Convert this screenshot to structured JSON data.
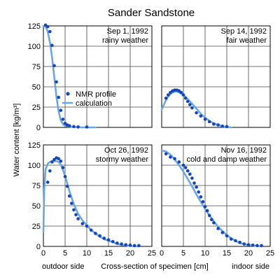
{
  "figure": {
    "title": "Sander Sandstone",
    "ylabel": "Water content [kg/m³]",
    "xlabel": "Cross-section of specimen [cm]",
    "left_note": "outdoor side",
    "right_note": "indoor side",
    "legend": {
      "points_label": "NMR profile",
      "line_label": "calculation"
    }
  },
  "chart_data": [
    {
      "type": "scatter",
      "date": "Sep 1, 1992",
      "weather": "rainy weather",
      "xlim": [
        0,
        25
      ],
      "ylim": [
        0,
        125
      ],
      "xticks": [],
      "yticks": [
        0,
        25,
        50,
        75,
        100,
        125
      ],
      "series": [
        {
          "name": "NMR profile",
          "kind": "points",
          "x": [
            0.5,
            1.0,
            1.5,
            2.0,
            2.5,
            3.0,
            3.5,
            4.0,
            4.5,
            5.0,
            5.5,
            6.0,
            7.0,
            8.0,
            10.0
          ],
          "y": [
            126,
            124,
            118,
            101,
            76,
            56,
            37,
            21,
            10,
            5,
            3,
            2,
            1,
            0.5,
            0.5
          ]
        },
        {
          "name": "calculation",
          "kind": "line",
          "x": [
            0,
            0.5,
            1.0,
            1.5,
            2.0,
            2.5,
            3.0,
            3.5,
            4.0,
            4.5,
            5.0,
            6.0,
            7.0,
            9.0,
            12.0
          ],
          "y": [
            125,
            124,
            118,
            105,
            86,
            62,
            38,
            20,
            9,
            4,
            2,
            1,
            0.5,
            0,
            0
          ]
        }
      ]
    },
    {
      "type": "scatter",
      "date": "Sep 14, 1992",
      "weather": "fair weather",
      "xlim": [
        0,
        25
      ],
      "ylim": [
        0,
        125
      ],
      "xticks": [],
      "yticks": [],
      "series": [
        {
          "name": "NMR profile",
          "kind": "points",
          "x": [
            1.0,
            1.5,
            2.0,
            2.5,
            3.0,
            3.5,
            4.0,
            4.5,
            5.0,
            5.5,
            6.0,
            6.5,
            7.0,
            8.0,
            9.0,
            10.0,
            11.0,
            12.0,
            13.0,
            14.0,
            15.0
          ],
          "y": [
            36,
            40,
            43,
            45,
            46,
            46,
            45,
            43,
            40,
            36,
            32,
            28,
            24,
            18,
            14,
            10,
            7,
            4,
            3,
            1.5,
            1
          ]
        },
        {
          "name": "calculation",
          "kind": "line",
          "x": [
            0,
            0.5,
            1.0,
            1.5,
            2.0,
            2.5,
            3.0,
            3.5,
            4.0,
            5.0,
            6.0,
            7.0,
            8.0,
            9.0,
            10.0,
            11.0,
            12.0,
            13.0,
            14.0,
            15.0,
            16.0
          ],
          "y": [
            22,
            28,
            34,
            38,
            41,
            43,
            44,
            44,
            43,
            40,
            35,
            29,
            23,
            17,
            12,
            8,
            5,
            3,
            1.5,
            0.5,
            0
          ]
        }
      ]
    },
    {
      "type": "scatter",
      "date": "Oct 26, 1992",
      "weather": "stormy weather",
      "xlim": [
        0,
        25
      ],
      "ylim": [
        0,
        125
      ],
      "xticks": [
        0,
        5,
        10,
        15,
        20,
        25
      ],
      "yticks": [
        0,
        25,
        50,
        75,
        100,
        125
      ],
      "series": [
        {
          "name": "NMR profile",
          "kind": "points",
          "x": [
            1.0,
            1.5,
            2.0,
            2.5,
            3.0,
            3.5,
            4.0,
            4.5,
            5.0,
            5.5,
            6.0,
            6.5,
            7.0,
            7.5,
            8.0,
            9.0,
            10.0,
            11.0,
            12.0,
            13.0,
            14.0,
            15.0,
            16.0,
            17.0,
            18.0,
            19.0,
            20.0,
            21.0,
            22.0
          ],
          "y": [
            79,
            93,
            104,
            107,
            109,
            108,
            105,
            97,
            86,
            74,
            62,
            53,
            45,
            39,
            34,
            28,
            25,
            20,
            16,
            13,
            10,
            8,
            6,
            4,
            3,
            2,
            1.5,
            1,
            1
          ]
        },
        {
          "name": "calculation",
          "kind": "line",
          "x": [
            0,
            0.2,
            0.5,
            1.0,
            1.5,
            2.0,
            3.0,
            3.5,
            4.0,
            5.0,
            6.0,
            7.0,
            8.0,
            9.0,
            10.0,
            11.0,
            12.0,
            13.0,
            14.0,
            15.0,
            16.0,
            17.0,
            18.0,
            19.0,
            20.0,
            21.0,
            22.0
          ],
          "y": [
            18,
            70,
            95,
            102,
            104,
            105,
            105,
            104,
            101,
            87,
            68,
            52,
            40,
            32,
            26,
            20,
            16,
            12,
            9,
            7,
            5,
            3,
            2,
            1,
            0.5,
            0.3,
            0
          ]
        }
      ]
    },
    {
      "type": "scatter",
      "date": "Nov 16, 1992",
      "weather": "cold and damp weather",
      "xlim": [
        0,
        25
      ],
      "ylim": [
        0,
        125
      ],
      "xticks": [
        0,
        5,
        10,
        15,
        20,
        25
      ],
      "yticks": [],
      "series": [
        {
          "name": "NMR profile",
          "kind": "points",
          "x": [
            1.0,
            2.0,
            3.0,
            4.0,
            5.0,
            5.5,
            6.0,
            6.5,
            7.0,
            7.5,
            8.0,
            8.5,
            9.0,
            9.5,
            10.0,
            10.5,
            11.0,
            11.5,
            12.0,
            13.0,
            14.0,
            15.0,
            16.0,
            17.0,
            18.0,
            19.0,
            20.0,
            21.0,
            22.0,
            23.0
          ],
          "y": [
            114,
            110,
            108,
            104,
            100,
            97,
            93,
            89,
            84,
            78,
            73,
            67,
            61,
            55,
            49,
            44,
            38,
            33,
            29,
            22,
            17,
            13,
            9,
            7,
            5,
            3,
            2,
            1.5,
            1,
            1
          ]
        },
        {
          "name": "calculation",
          "kind": "line",
          "x": [
            0,
            1,
            2,
            3,
            4,
            5,
            6,
            7,
            8,
            9,
            10,
            11,
            12,
            13,
            14,
            15,
            16,
            17,
            18,
            19,
            20,
            21,
            22,
            23
          ],
          "y": [
            118,
            117,
            113,
            107,
            100,
            92,
            83,
            74,
            64,
            55,
            46,
            38,
            31,
            24,
            19,
            14,
            10,
            7,
            4,
            3,
            1.5,
            1,
            0.5,
            0
          ]
        }
      ]
    }
  ],
  "colors": {
    "points": "#1546b8",
    "line": "#6aa7e6",
    "grid": "#444444"
  }
}
